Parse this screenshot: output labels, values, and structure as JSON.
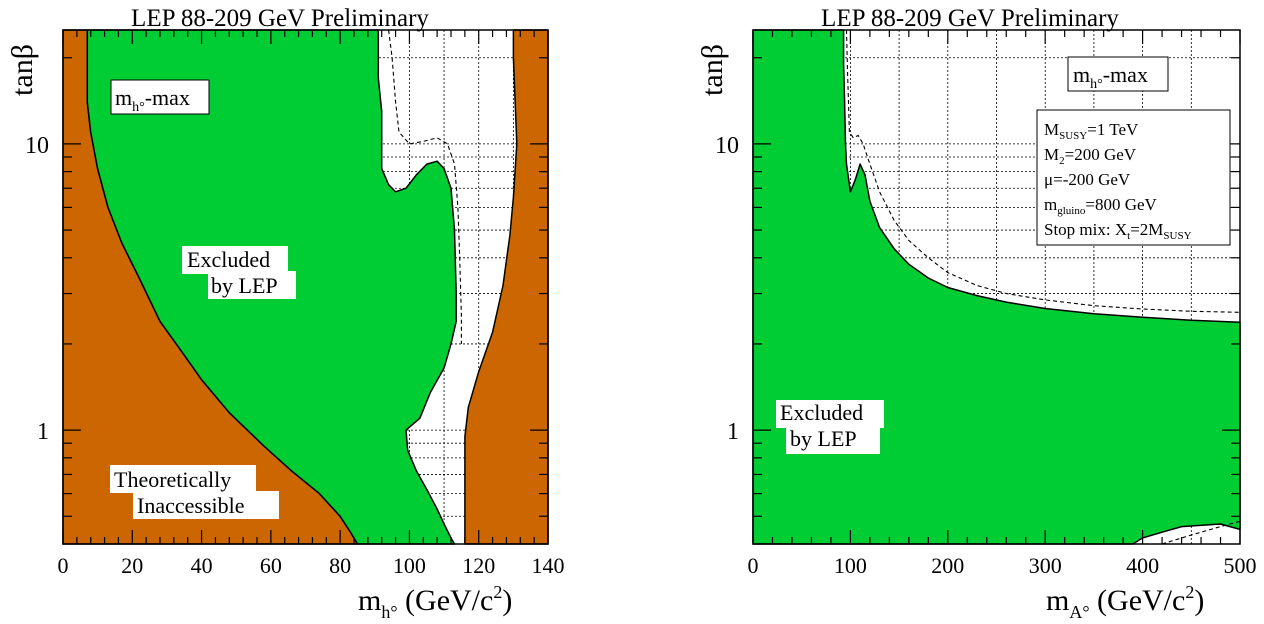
{
  "chart_data": [
    {
      "type": "area",
      "title": "LEP 88-209 GeV Preliminary",
      "xlabel": "m_h° (GeV/c²)",
      "ylabel": "tanβ",
      "x_scale": "linear",
      "y_scale": "log",
      "xlim": [
        0,
        140
      ],
      "ylim": [
        0.4,
        25
      ],
      "x_ticks": [
        0,
        20,
        40,
        60,
        80,
        100,
        120,
        140
      ],
      "x_tick_labels": [
        "0",
        "20",
        "40",
        "60",
        "80",
        "100",
        "120",
        "140"
      ],
      "y_tick_labels": [
        {
          "value": 1,
          "label": "1"
        },
        {
          "value": 10,
          "label": "10"
        }
      ],
      "scenario_label": "m_h°-max",
      "colors": {
        "excluded": "#00cc33",
        "theoretical": "#cc6600",
        "allowed": "#ffffff"
      },
      "annotations": [
        {
          "text": "Excluded",
          "x": 50,
          "y": 5.7
        },
        {
          "text": "by LEP",
          "x": 54,
          "y": 4.3
        },
        {
          "text": "Theoretically",
          "x": 34,
          "y": 0.74
        },
        {
          "text": "Inaccessible",
          "x": 39,
          "y": 0.58
        }
      ],
      "regions": [
        {
          "name": "Theoretically Inaccessible (left)",
          "color": "theoretical",
          "points": [
            [
              0,
              25
            ],
            [
              7,
              25
            ],
            [
              7,
              19
            ],
            [
              7,
              14
            ],
            [
              8,
              11
            ],
            [
              10,
              8.2
            ],
            [
              13,
              6
            ],
            [
              17,
              4.5
            ],
            [
              22,
              3.4
            ],
            [
              28,
              2.4
            ],
            [
              34,
              1.9
            ],
            [
              40,
              1.5
            ],
            [
              48,
              1.15
            ],
            [
              58,
              0.88
            ],
            [
              66,
              0.72
            ],
            [
              74,
              0.6
            ],
            [
              80,
              0.5
            ],
            [
              83,
              0.44
            ],
            [
              85,
              0.4
            ],
            [
              0,
              0.4
            ]
          ]
        },
        {
          "name": "Theoretically Inaccessible (right)",
          "color": "theoretical",
          "points": [
            [
              130,
              25
            ],
            [
              140,
              25
            ],
            [
              140,
              0.4
            ],
            [
              116,
              0.4
            ],
            [
              116,
              0.95
            ],
            [
              117,
              1.2
            ],
            [
              120,
              1.6
            ],
            [
              124,
              2.2
            ],
            [
              127,
              3.2
            ],
            [
              129,
              4.8
            ],
            [
              130,
              6.5
            ],
            [
              131,
              10
            ],
            [
              130,
              20
            ]
          ]
        },
        {
          "name": "Excluded by LEP",
          "color": "excluded",
          "points": [
            [
              7,
              25
            ],
            [
              91,
              25
            ],
            [
              91,
              17
            ],
            [
              92,
              13
            ],
            [
              92,
              8.2
            ],
            [
              94,
              7.2
            ],
            [
              96,
              6.8
            ],
            [
              99,
              7.0
            ],
            [
              102,
              7.8
            ],
            [
              105,
              8.5
            ],
            [
              108,
              8.7
            ],
            [
              110,
              8.2
            ],
            [
              112,
              7
            ],
            [
              113,
              5
            ],
            [
              113.5,
              3
            ],
            [
              113.5,
              2.4
            ],
            [
              112,
              2.0
            ],
            [
              110,
              1.65
            ],
            [
              106,
              1.35
            ],
            [
              103,
              1.1
            ],
            [
              99,
              1.0
            ],
            [
              99.5,
              0.85
            ],
            [
              102,
              0.72
            ],
            [
              105,
              0.62
            ],
            [
              108,
              0.53
            ],
            [
              110,
              0.47
            ],
            [
              112,
              0.42
            ],
            [
              113,
              0.4
            ],
            [
              85,
              0.4
            ],
            [
              83,
              0.44
            ],
            [
              80,
              0.5
            ],
            [
              74,
              0.6
            ],
            [
              66,
              0.72
            ],
            [
              58,
              0.88
            ],
            [
              48,
              1.15
            ],
            [
              40,
              1.5
            ],
            [
              34,
              1.9
            ],
            [
              28,
              2.4
            ],
            [
              22,
              3.4
            ],
            [
              17,
              4.5
            ],
            [
              13,
              6
            ],
            [
              10,
              8.2
            ],
            [
              8,
              11
            ],
            [
              7,
              14
            ],
            [
              7,
              19
            ]
          ]
        }
      ],
      "expected_limit": {
        "style": "dashed",
        "points": [
          [
            94,
            25
          ],
          [
            95,
            20
          ],
          [
            96,
            14
          ],
          [
            97,
            11
          ],
          [
            100,
            10
          ],
          [
            104,
            10.2
          ],
          [
            108,
            10.5
          ],
          [
            111,
            10
          ],
          [
            113,
            8.5
          ],
          [
            114,
            6
          ],
          [
            114.5,
            4
          ],
          [
            115,
            2.5
          ],
          [
            115,
            2.0
          ]
        ]
      }
    },
    {
      "type": "area",
      "title": "LEP 88-209 GeV Preliminary",
      "xlabel": "m_A° (GeV/c²)",
      "ylabel": "tanβ",
      "x_scale": "linear",
      "y_scale": "log",
      "xlim": [
        0,
        500
      ],
      "ylim": [
        0.4,
        25
      ],
      "x_ticks": [
        0,
        100,
        200,
        300,
        400,
        500
      ],
      "x_tick_labels": [
        "0",
        "100",
        "200",
        "300",
        "400",
        "500"
      ],
      "y_tick_labels": [
        {
          "value": 1,
          "label": "1"
        },
        {
          "value": 10,
          "label": "10"
        }
      ],
      "scenario_label": "m_h°-max",
      "parameters": [
        "M_SUSY=1 TeV",
        "M_2=200 GeV",
        "μ=-200 GeV",
        "m_gluino=800 GeV",
        "Stop mix: X_t=2M_SUSY"
      ],
      "colors": {
        "excluded": "#00cc33",
        "allowed": "#ffffff"
      },
      "annotations": [
        {
          "text": "Excluded",
          "x": 78,
          "y": 0.93
        },
        {
          "text": "by LEP",
          "x": 82,
          "y": 0.74
        }
      ],
      "regions": [
        {
          "name": "Excluded by LEP",
          "color": "excluded",
          "points": [
            [
              0,
              25
            ],
            [
              93,
              25
            ],
            [
              93,
              19
            ],
            [
              94,
              14
            ],
            [
              95,
              10
            ],
            [
              96,
              8.5
            ],
            [
              100,
              6.8
            ],
            [
              105,
              7.5
            ],
            [
              110,
              8.5
            ],
            [
              115,
              7.8
            ],
            [
              120,
              6.3
            ],
            [
              130,
              5.1
            ],
            [
              145,
              4.3
            ],
            [
              160,
              3.8
            ],
            [
              180,
              3.4
            ],
            [
              200,
              3.15
            ],
            [
              230,
              2.95
            ],
            [
              260,
              2.8
            ],
            [
              300,
              2.66
            ],
            [
              350,
              2.55
            ],
            [
              400,
              2.48
            ],
            [
              450,
              2.42
            ],
            [
              500,
              2.38
            ],
            [
              500,
              0.45
            ],
            [
              480,
              0.47
            ],
            [
              440,
              0.46
            ],
            [
              420,
              0.44
            ],
            [
              400,
              0.42
            ],
            [
              390,
              0.4
            ],
            [
              0,
              0.4
            ]
          ]
        }
      ],
      "expected_limit": {
        "style": "dashed",
        "points": [
          [
            96,
            25
          ],
          [
            97,
            18
          ],
          [
            98,
            14
          ],
          [
            99,
            11
          ],
          [
            103,
            10.5
          ],
          [
            108,
            10.7
          ],
          [
            113,
            10
          ],
          [
            120,
            8.5
          ],
          [
            130,
            6.8
          ],
          [
            145,
            5.4
          ],
          [
            160,
            4.6
          ],
          [
            180,
            4.0
          ],
          [
            200,
            3.55
          ],
          [
            230,
            3.2
          ],
          [
            260,
            3.0
          ],
          [
            300,
            2.85
          ],
          [
            350,
            2.72
          ],
          [
            400,
            2.65
          ],
          [
            450,
            2.6
          ],
          [
            500,
            2.58
          ]
        ]
      },
      "expected_limit_lower": {
        "style": "dashed",
        "points": [
          [
            420,
            0.4
          ],
          [
            450,
            0.43
          ],
          [
            480,
            0.46
          ],
          [
            500,
            0.48
          ]
        ]
      }
    }
  ]
}
